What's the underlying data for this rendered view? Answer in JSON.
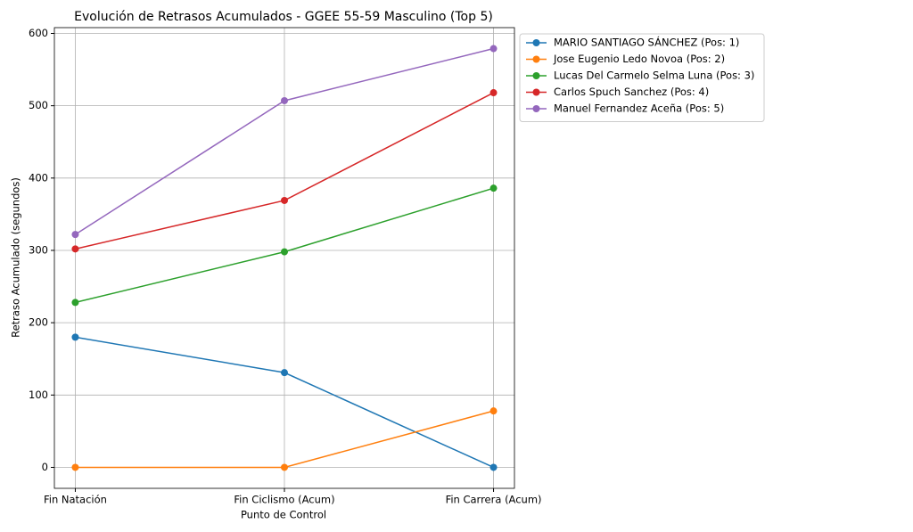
{
  "chart_data": {
    "type": "line",
    "title": "Evolución de Retrasos Acumulados - GGEE 55-59 Masculino (Top 5)",
    "x_label": "Punto de Control",
    "y_label": "Retraso Acumulado (segundos)",
    "categories": [
      "Fin Natación",
      "Fin Ciclismo (Acum)",
      "Fin Carrera (Acum)"
    ],
    "series": [
      {
        "name": "MARIO SANTIAGO SÁNCHEZ (Pos: 1)",
        "color": "#1f77b4",
        "values": [
          180,
          131,
          0
        ]
      },
      {
        "name": "Jose Eugenio Ledo Novoa (Pos: 2)",
        "color": "#ff7f0e",
        "values": [
          0,
          0,
          78
        ]
      },
      {
        "name": "Lucas Del Carmelo Selma Luna (Pos: 3)",
        "color": "#2ca02c",
        "values": [
          228,
          298,
          386
        ]
      },
      {
        "name": "Carlos Spuch Sanchez (Pos: 4)",
        "color": "#d62728",
        "values": [
          302,
          369,
          518
        ]
      },
      {
        "name": "Manuel Fernandez Aceña (Pos: 5)",
        "color": "#9467bd",
        "values": [
          322,
          507,
          579
        ]
      }
    ],
    "ylim": [
      -29,
      608
    ],
    "yticks": [
      0,
      100,
      200,
      300,
      400,
      500,
      600
    ],
    "grid": true,
    "legend": "outside-upper-right"
  }
}
